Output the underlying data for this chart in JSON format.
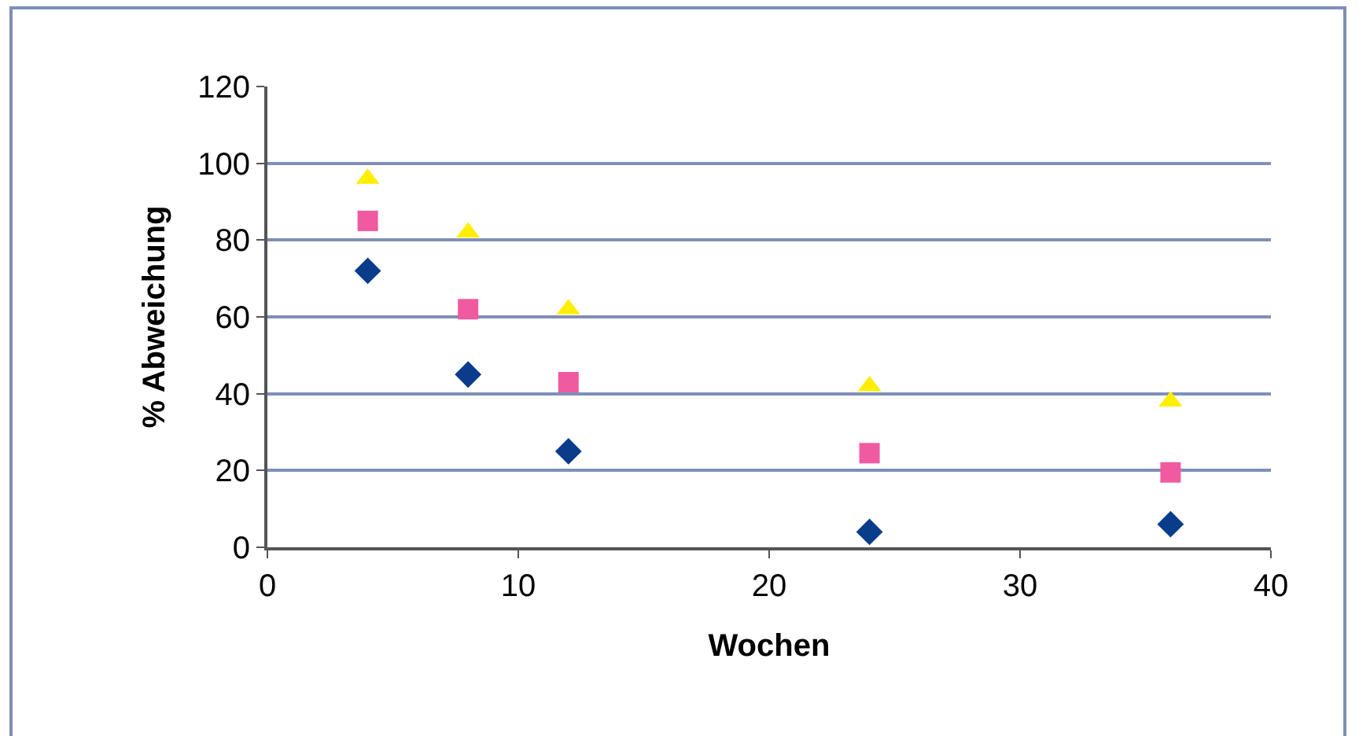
{
  "chart_data": {
    "type": "scatter",
    "xlabel": "Wochen",
    "ylabel": "% Abweichung",
    "x": [
      4,
      8,
      12,
      24,
      36
    ],
    "series": [
      {
        "color": "#0a3c8c",
        "marker": "diamond",
        "values": [
          72,
          45,
          25,
          4,
          6
        ]
      },
      {
        "color": "#f05aa0",
        "marker": "square",
        "values": [
          85,
          62,
          43,
          24.5,
          19.5
        ]
      },
      {
        "color": "#ffee00",
        "marker": "triangle",
        "values": [
          96,
          82,
          62,
          42,
          38
        ]
      }
    ],
    "xlim": [
      0,
      40
    ],
    "xticks": [
      0,
      10,
      20,
      30,
      40
    ],
    "ylim": [
      0,
      120
    ],
    "yticks": [
      0,
      20,
      40,
      60,
      80,
      100,
      120
    ],
    "grid": "y"
  }
}
